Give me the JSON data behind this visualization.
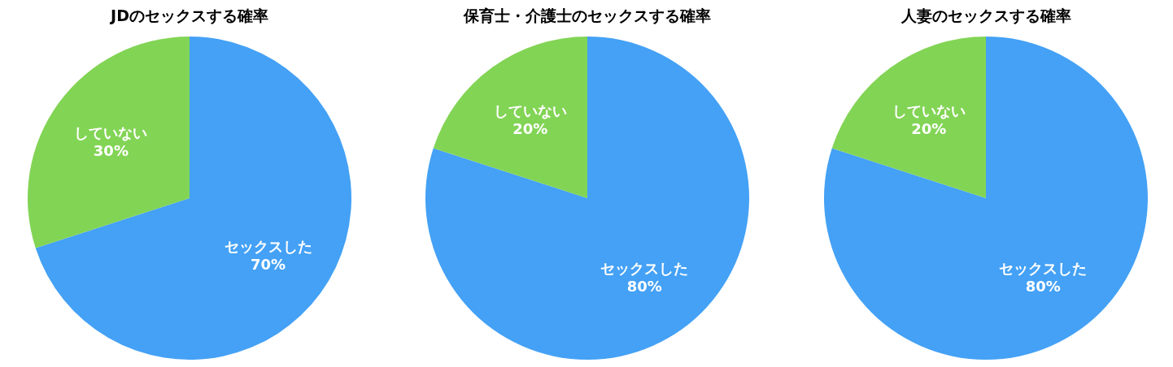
{
  "chart_data": [
    {
      "type": "pie",
      "title": "JDのセックスする確率",
      "categories": [
        "セックスした",
        "していない"
      ],
      "values": [
        70,
        30
      ],
      "value_labels": [
        "70%",
        "30%"
      ],
      "colors": [
        "#44a1f5",
        "#82d455"
      ]
    },
    {
      "type": "pie",
      "title": "保育士・介護士のセックスする確率",
      "categories": [
        "セックスした",
        "していない"
      ],
      "values": [
        80,
        20
      ],
      "value_labels": [
        "80%",
        "20%"
      ],
      "colors": [
        "#44a1f5",
        "#82d455"
      ]
    },
    {
      "type": "pie",
      "title": "人妻のセックスする確率",
      "categories": [
        "セックスした",
        "していない"
      ],
      "values": [
        80,
        20
      ],
      "value_labels": [
        "80%",
        "20%"
      ],
      "colors": [
        "#44a1f5",
        "#82d455"
      ]
    }
  ]
}
